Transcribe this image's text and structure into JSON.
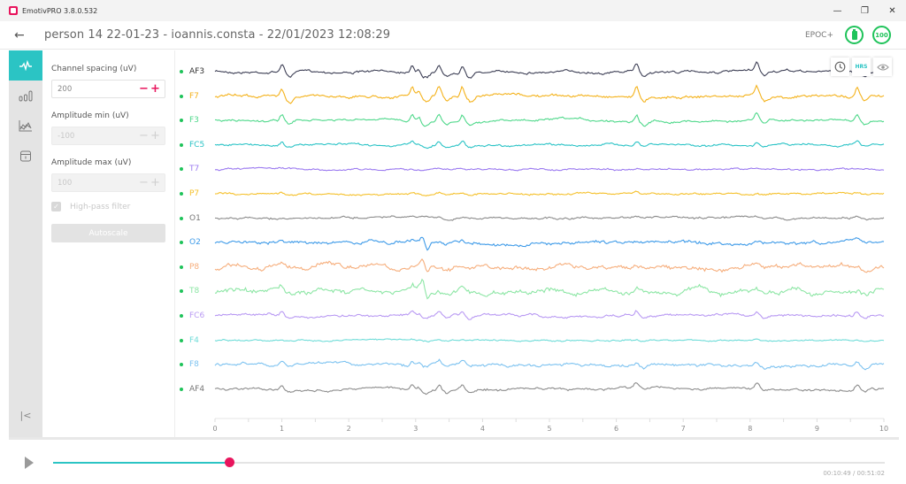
{
  "window": {
    "app_title": "EmotivPRO 3.8.0.532",
    "controls": {
      "minimize": "—",
      "restore": "❐",
      "close": "✕"
    }
  },
  "header": {
    "back_icon": "←",
    "title": "person 14 22-01-23 - ioannis.consta - 22/01/2023 12:08:29",
    "device": "EPOC+",
    "battery_icon": "battery-full",
    "signal_quality": "100"
  },
  "rail": {
    "items": [
      {
        "name": "raw-eeg",
        "icon": "waveform-icon",
        "active": true
      },
      {
        "name": "band-power",
        "icon": "bar-chart-icon",
        "active": false
      },
      {
        "name": "performance-metrics",
        "icon": "line-chart-icon",
        "active": false
      },
      {
        "name": "data-packets",
        "icon": "package-icon",
        "active": false
      }
    ],
    "collapse_label": "|<"
  },
  "settings": {
    "channel_spacing": {
      "label": "Channel spacing (uV)",
      "value": "200",
      "minus": "−",
      "plus": "+"
    },
    "amplitude_min": {
      "label": "Amplitude min (uV)",
      "value": "-100",
      "minus": "−",
      "plus": "+"
    },
    "amplitude_max": {
      "label": "Amplitude max (uV)",
      "value": "100",
      "minus": "−",
      "plus": "+"
    },
    "high_pass": {
      "label": "High-pass filter",
      "checked": true,
      "check": "✓"
    },
    "autoscale_label": "Autoscale"
  },
  "plot": {
    "overlay_buttons": {
      "clock": "clock-icon",
      "hrs_label": "HRS",
      "eye": "eye-icon"
    },
    "x_ticks": [
      "0",
      "1",
      "2",
      "3",
      "4",
      "5",
      "6",
      "7",
      "8",
      "9",
      "10"
    ],
    "channels": [
      {
        "name": "AF3",
        "color": "#3d3f55",
        "label_color": "#333333"
      },
      {
        "name": "F7",
        "color": "#f4b21b",
        "label_color": "#f4b21b"
      },
      {
        "name": "F3",
        "color": "#4ed88a",
        "label_color": "#4ed88a"
      },
      {
        "name": "FC5",
        "color": "#2ac3c6",
        "label_color": "#2ac3c6"
      },
      {
        "name": "T7",
        "color": "#9b7af0",
        "label_color": "#9b7af0"
      },
      {
        "name": "P7",
        "color": "#f5c02a",
        "label_color": "#f5c02a"
      },
      {
        "name": "O1",
        "color": "#8a8a8a",
        "label_color": "#777777"
      },
      {
        "name": "O2",
        "color": "#3d9ae8",
        "label_color": "#3d9ae8"
      },
      {
        "name": "P8",
        "color": "#f6ae7c",
        "label_color": "#f6ae7c"
      },
      {
        "name": "T8",
        "color": "#8de6a5",
        "label_color": "#8de6a5"
      },
      {
        "name": "FC6",
        "color": "#b99af3",
        "label_color": "#b99af3"
      },
      {
        "name": "F4",
        "color": "#6fdcd8",
        "label_color": "#6fdcd8"
      },
      {
        "name": "F8",
        "color": "#7cc2f0",
        "label_color": "#7cc2f0"
      },
      {
        "name": "AF4",
        "color": "#8c8c8c",
        "label_color": "#777777"
      }
    ]
  },
  "playback": {
    "progress_pct": 21.2,
    "time": "00:10:49 / 00:51:02",
    "accent_color": "#2bc4c4",
    "thumb_color": "#e8155d"
  }
}
